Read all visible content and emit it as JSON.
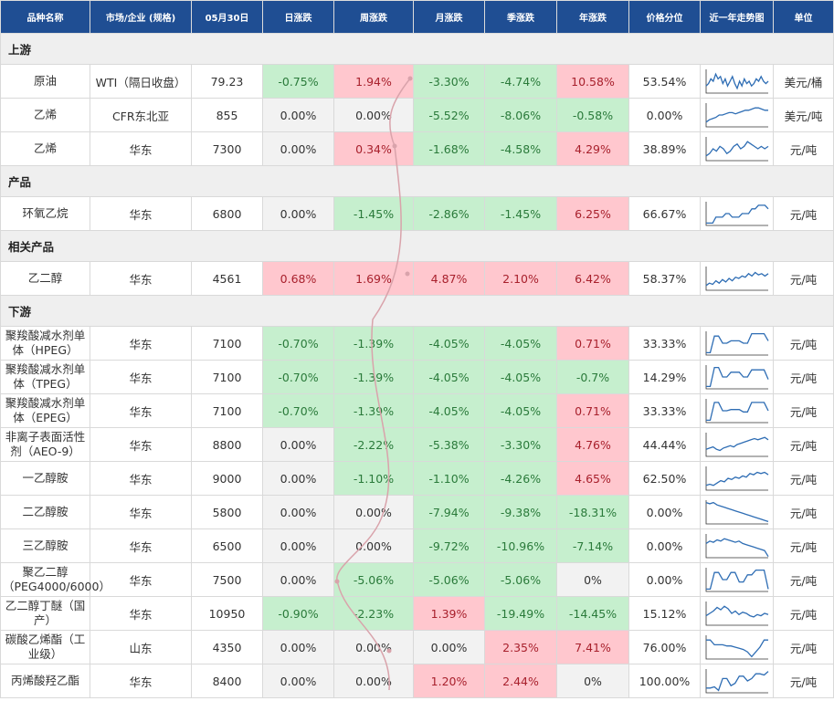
{
  "header": [
    "品种名称",
    "市场/企业 (规格)",
    "05月30日",
    "日涨跌",
    "周涨跌",
    "月涨跌",
    "季涨跌",
    "年涨跌",
    "价格分位",
    "近一年走势图",
    "单位"
  ],
  "sections": [
    {
      "title": "上游",
      "rows": [
        {
          "name": "原油",
          "market": "WTI（隔日收盘）",
          "price": "79.23",
          "day": "-0.75%",
          "week": "1.94%",
          "month": "-3.30%",
          "quarter": "-4.74%",
          "year": "10.58%",
          "percentile": "53.54%",
          "unit": "美元/桶",
          "dc": "g",
          "wc": "r",
          "mc": "g",
          "qc": "g",
          "yc": "r",
          "trend": [
            0.3,
            0.4,
            0.6,
            0.5,
            0.8,
            0.6,
            0.7,
            0.4,
            0.6,
            0.3,
            0.5,
            0.7,
            0.4,
            0.2,
            0.5,
            0.3,
            0.6,
            0.4,
            0.5,
            0.3,
            0.4,
            0.6,
            0.5,
            0.7,
            0.5,
            0.4,
            0.5
          ]
        },
        {
          "name": "乙烯",
          "market": "CFR东北亚",
          "price": "855",
          "day": "0.00%",
          "week": "0.00%",
          "month": "-5.52%",
          "quarter": "-8.06%",
          "year": "-0.58%",
          "percentile": "0.00%",
          "unit": "美元/吨",
          "dc": "n",
          "wc": "n",
          "mc": "g",
          "qc": "g",
          "yc": "g",
          "trend": [
            0.2,
            0.3,
            0.35,
            0.4,
            0.5,
            0.5,
            0.55,
            0.6,
            0.6,
            0.55,
            0.6,
            0.65,
            0.7,
            0.7,
            0.75,
            0.8,
            0.8,
            0.75,
            0.7,
            0.7
          ]
        },
        {
          "name": "乙烯",
          "market": "华东",
          "price": "7300",
          "day": "0.00%",
          "week": "0.34%",
          "month": "-1.68%",
          "quarter": "-4.58%",
          "year": "4.29%",
          "percentile": "38.89%",
          "unit": "元/吨",
          "dc": "n",
          "wc": "r",
          "mc": "g",
          "qc": "g",
          "yc": "r",
          "trend": [
            0.2,
            0.3,
            0.5,
            0.4,
            0.6,
            0.5,
            0.3,
            0.4,
            0.6,
            0.7,
            0.5,
            0.6,
            0.8,
            0.7,
            0.6,
            0.5,
            0.6,
            0.5,
            0.6
          ]
        }
      ]
    },
    {
      "title": "产品",
      "rows": [
        {
          "name": "环氧乙烷",
          "market": "华东",
          "price": "6800",
          "day": "0.00%",
          "week": "-1.45%",
          "month": "-2.86%",
          "quarter": "-1.45%",
          "year": "6.25%",
          "percentile": "66.67%",
          "unit": "元/吨",
          "dc": "n",
          "wc": "g",
          "mc": "g",
          "qc": "g",
          "yc": "r",
          "trend": [
            0.1,
            0.1,
            0.1,
            0.35,
            0.35,
            0.35,
            0.5,
            0.5,
            0.35,
            0.35,
            0.35,
            0.5,
            0.5,
            0.5,
            0.7,
            0.7,
            0.85,
            0.85,
            0.85,
            0.7
          ]
        }
      ]
    },
    {
      "title": "相关产品",
      "rows": [
        {
          "name": "乙二醇",
          "market": "华东",
          "price": "4561",
          "day": "0.68%",
          "week": "1.69%",
          "month": "4.87%",
          "quarter": "2.10%",
          "year": "6.42%",
          "percentile": "58.37%",
          "unit": "元/吨",
          "dc": "r",
          "wc": "r",
          "mc": "r",
          "qc": "r",
          "yc": "r",
          "trend": [
            0.2,
            0.3,
            0.25,
            0.4,
            0.3,
            0.45,
            0.35,
            0.5,
            0.4,
            0.55,
            0.5,
            0.6,
            0.55,
            0.7,
            0.6,
            0.75,
            0.65,
            0.7,
            0.6,
            0.7
          ]
        }
      ]
    },
    {
      "title": "下游",
      "rows": [
        {
          "name": "聚羧酸减水剂单体（HPEG）",
          "market": "华东",
          "price": "7100",
          "day": "-0.70%",
          "week": "-1.39%",
          "month": "-4.05%",
          "quarter": "-4.05%",
          "year": "0.71%",
          "percentile": "33.33%",
          "unit": "元/吨",
          "dc": "g",
          "wc": "g",
          "mc": "g",
          "qc": "g",
          "yc": "r",
          "trend": [
            0.1,
            0.1,
            0.8,
            0.8,
            0.5,
            0.5,
            0.6,
            0.6,
            0.6,
            0.5,
            0.5,
            0.9,
            0.9,
            0.9,
            0.9,
            0.6
          ]
        },
        {
          "name": "聚羧酸减水剂单体（TPEG）",
          "market": "华东",
          "price": "7100",
          "day": "-0.70%",
          "week": "-1.39%",
          "month": "-4.05%",
          "quarter": "-4.05%",
          "year": "-0.7%",
          "percentile": "14.29%",
          "unit": "元/吨",
          "dc": "g",
          "wc": "g",
          "mc": "g",
          "qc": "g",
          "yc": "g",
          "trend": [
            0.1,
            0.1,
            0.9,
            0.9,
            0.5,
            0.5,
            0.7,
            0.7,
            0.7,
            0.5,
            0.5,
            0.8,
            0.8,
            0.8,
            0.8,
            0.4
          ]
        },
        {
          "name": "聚羧酸减水剂单体（EPEG）",
          "market": "华东",
          "price": "7100",
          "day": "-0.70%",
          "week": "-1.39%",
          "month": "-4.05%",
          "quarter": "-4.05%",
          "year": "0.71%",
          "percentile": "33.33%",
          "unit": "元/吨",
          "dc": "g",
          "wc": "g",
          "mc": "g",
          "qc": "g",
          "yc": "r",
          "trend": [
            0.1,
            0.1,
            0.85,
            0.85,
            0.5,
            0.5,
            0.55,
            0.55,
            0.55,
            0.45,
            0.45,
            0.85,
            0.85,
            0.85,
            0.85,
            0.5
          ]
        },
        {
          "name": "非离子表面活性剂（AEO-9）",
          "market": "华东",
          "price": "8800",
          "day": "0.00%",
          "week": "-2.22%",
          "month": "-5.38%",
          "quarter": "-3.30%",
          "year": "4.76%",
          "percentile": "44.44%",
          "unit": "元/吨",
          "dc": "n",
          "wc": "g",
          "mc": "g",
          "qc": "g",
          "yc": "r",
          "trend": [
            0.3,
            0.35,
            0.4,
            0.3,
            0.25,
            0.35,
            0.4,
            0.45,
            0.4,
            0.5,
            0.55,
            0.6,
            0.65,
            0.7,
            0.75,
            0.7,
            0.75,
            0.8,
            0.7
          ]
        },
        {
          "name": "一乙醇胺",
          "market": "华东",
          "price": "9000",
          "day": "0.00%",
          "week": "-1.10%",
          "month": "-1.10%",
          "quarter": "-4.26%",
          "year": "4.65%",
          "percentile": "62.50%",
          "unit": "元/吨",
          "dc": "n",
          "wc": "g",
          "mc": "g",
          "qc": "g",
          "yc": "r",
          "trend": [
            0.2,
            0.25,
            0.2,
            0.3,
            0.4,
            0.35,
            0.5,
            0.45,
            0.55,
            0.5,
            0.6,
            0.55,
            0.7,
            0.65,
            0.75,
            0.7,
            0.75,
            0.65
          ]
        },
        {
          "name": "二乙醇胺",
          "market": "华东",
          "price": "5800",
          "day": "0.00%",
          "week": "0.00%",
          "month": "-7.94%",
          "quarter": "-9.38%",
          "year": "-18.31%",
          "percentile": "0.00%",
          "unit": "元/吨",
          "dc": "n",
          "wc": "n",
          "mc": "g",
          "qc": "g",
          "yc": "g",
          "trend": [
            0.9,
            0.85,
            0.9,
            0.8,
            0.75,
            0.7,
            0.65,
            0.6,
            0.55,
            0.5,
            0.45,
            0.4,
            0.35,
            0.3,
            0.25,
            0.2,
            0.15,
            0.1
          ]
        },
        {
          "name": "三乙醇胺",
          "market": "华东",
          "price": "6500",
          "day": "0.00%",
          "week": "0.00%",
          "month": "-9.72%",
          "quarter": "-10.96%",
          "year": "-7.14%",
          "percentile": "0.00%",
          "unit": "元/吨",
          "dc": "n",
          "wc": "n",
          "mc": "g",
          "qc": "g",
          "yc": "g",
          "trend": [
            0.6,
            0.7,
            0.65,
            0.75,
            0.7,
            0.8,
            0.75,
            0.7,
            0.65,
            0.7,
            0.6,
            0.55,
            0.5,
            0.45,
            0.4,
            0.35,
            0.3,
            0.05
          ]
        },
        {
          "name": "聚乙二醇（PEG4000/6000）",
          "market": "华东",
          "price": "7500",
          "day": "0.00%",
          "week": "-5.06%",
          "month": "-5.06%",
          "quarter": "-5.06%",
          "year": "0%",
          "percentile": "0.00%",
          "unit": "元/吨",
          "dc": "n",
          "wc": "g",
          "mc": "g",
          "qc": "g",
          "yc": "n",
          "trend": [
            0.1,
            0.1,
            0.8,
            0.8,
            0.5,
            0.5,
            0.8,
            0.8,
            0.4,
            0.4,
            0.7,
            0.7,
            0.9,
            0.9,
            0.9,
            0.1
          ]
        },
        {
          "name": "乙二醇丁醚（国产）",
          "market": "华东",
          "price": "10950",
          "day": "-0.90%",
          "week": "-2.23%",
          "month": "1.39%",
          "quarter": "-19.49%",
          "year": "-14.45%",
          "percentile": "15.12%",
          "unit": "元/吨",
          "dc": "g",
          "wc": "g",
          "mc": "r",
          "qc": "g",
          "yc": "g",
          "trend": [
            0.4,
            0.5,
            0.6,
            0.75,
            0.65,
            0.8,
            0.7,
            0.5,
            0.6,
            0.45,
            0.55,
            0.5,
            0.4,
            0.35,
            0.45,
            0.4,
            0.5,
            0.45
          ]
        },
        {
          "name": "碳酸乙烯酯（工业级）",
          "market": "山东",
          "price": "4350",
          "day": "0.00%",
          "week": "0.00%",
          "month": "0.00%",
          "quarter": "2.35%",
          "year": "7.41%",
          "percentile": "76.00%",
          "unit": "元/吨",
          "dc": "n",
          "wc": "n",
          "mc": "n",
          "qc": "r",
          "yc": "r",
          "trend": [
            0.8,
            0.8,
            0.6,
            0.6,
            0.6,
            0.55,
            0.55,
            0.5,
            0.45,
            0.4,
            0.3,
            0.1,
            0.3,
            0.5,
            0.8,
            0.8
          ]
        },
        {
          "name": "丙烯酸羟乙酯",
          "market": "华东",
          "price": "8400",
          "day": "0.00%",
          "week": "0.00%",
          "month": "1.20%",
          "quarter": "2.44%",
          "year": "0%",
          "percentile": "100.00%",
          "unit": "元/吨",
          "dc": "n",
          "wc": "n",
          "mc": "r",
          "qc": "r",
          "yc": "n",
          "trend": [
            0.2,
            0.2,
            0.25,
            0.1,
            0.6,
            0.6,
            0.3,
            0.4,
            0.7,
            0.7,
            0.5,
            0.6,
            0.8,
            0.8,
            0.75,
            0.9
          ]
        }
      ]
    }
  ]
}
